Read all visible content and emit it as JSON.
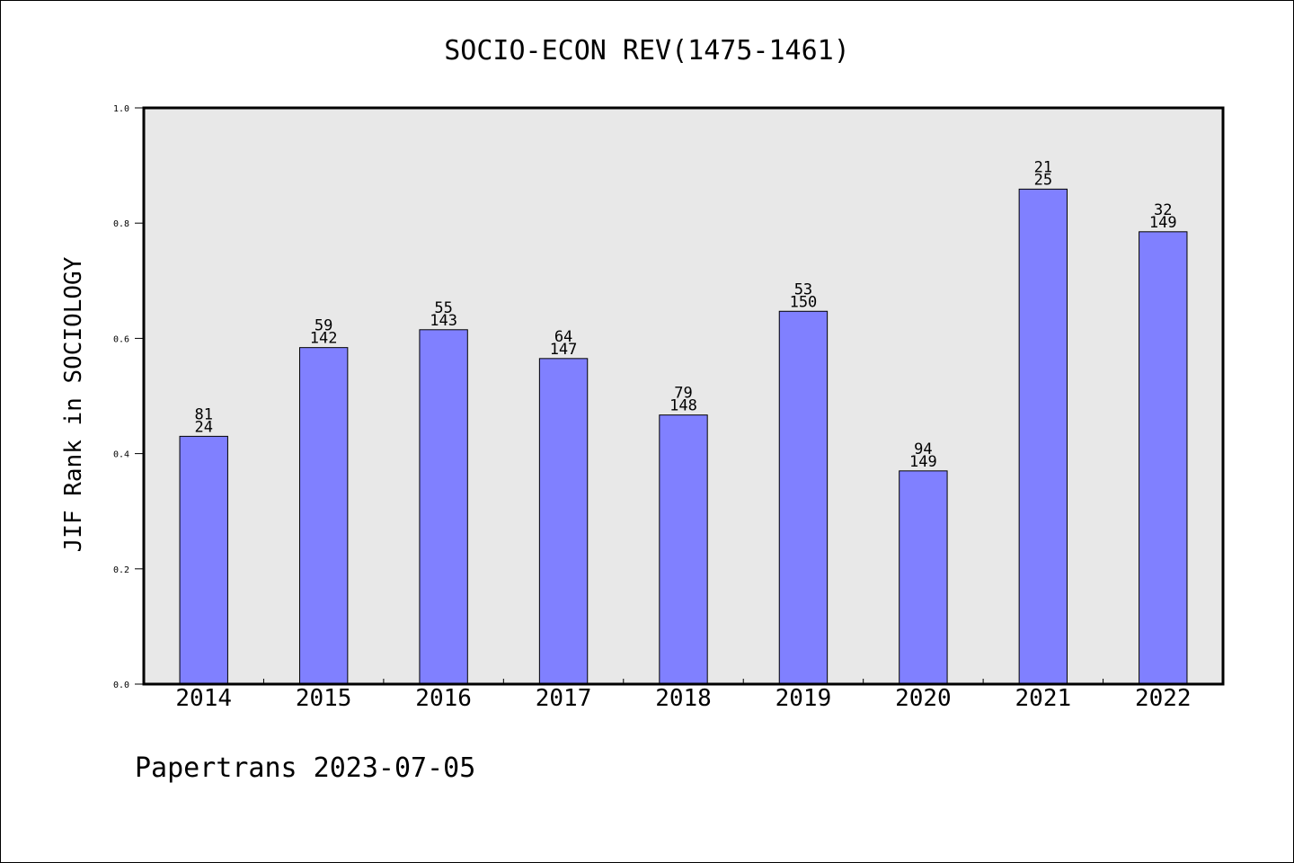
{
  "chart_data": {
    "type": "bar",
    "title": "SOCIO-ECON REV(1475-1461)",
    "xlabel": "",
    "ylabel": "JIF Rank in SOCIOLOGY",
    "categories": [
      "2014",
      "2015",
      "2016",
      "2017",
      "2018",
      "2019",
      "2020",
      "2021",
      "2022"
    ],
    "values": [
      0.43,
      0.584,
      0.615,
      0.565,
      0.467,
      0.647,
      0.37,
      0.859,
      0.785
    ],
    "label_top": [
      "81",
      "59",
      "55",
      "64",
      "79",
      "53",
      "94",
      "21",
      "32"
    ],
    "label_bottom": [
      "24",
      "142",
      "143",
      "147",
      "148",
      "150",
      "149",
      "25",
      "149"
    ],
    "ylim": [
      0,
      1.0
    ],
    "yticks": [
      "0.0",
      "0.2",
      "0.4",
      "0.6",
      "0.8",
      "1.0"
    ],
    "grid": false,
    "colors": {
      "bar": "#8080ff",
      "plot_bg": "#e8e8e8",
      "frame": "#000000"
    }
  },
  "footer": "Papertrans 2023-07-05"
}
